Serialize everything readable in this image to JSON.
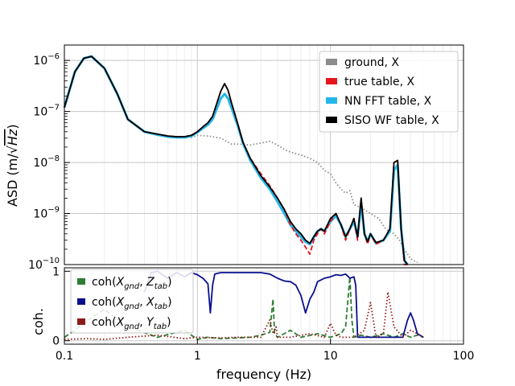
{
  "chart_data": [
    {
      "type": "line",
      "x_scale": "log",
      "y_scale": "log",
      "xlim": [
        0.1,
        100
      ],
      "ylim": [
        1e-10,
        2e-06
      ],
      "grid": true,
      "ylabel_text": "ASD (m/",
      "ylabel_sqrt": "Hz",
      "ylabel_close": ")",
      "yticks": [
        {
          "v": 1e-06,
          "mant": "10",
          "exp": "−6"
        },
        {
          "v": 1e-07,
          "mant": "10",
          "exp": "−7"
        },
        {
          "v": 1e-08,
          "mant": "10",
          "exp": "−8"
        },
        {
          "v": 1e-09,
          "mant": "10",
          "exp": "−9"
        },
        {
          "v": 1e-10,
          "mant": "10",
          "exp": "−10"
        }
      ],
      "legend_position": "top-right",
      "series": [
        {
          "name": "ground, X",
          "color": "#8c8c8c",
          "style": "dotted",
          "x": [
            0.1,
            0.12,
            0.14,
            0.16,
            0.2,
            0.25,
            0.3,
            0.4,
            0.5,
            0.6,
            0.7,
            0.8,
            0.9,
            1,
            1.2,
            1.5,
            1.8,
            2,
            2.5,
            3,
            3.5,
            4,
            4.5,
            5,
            6,
            7,
            8,
            9,
            10,
            11,
            12,
            13,
            14,
            15,
            17,
            20,
            23,
            26,
            30,
            33,
            36,
            40,
            45
          ],
          "y": [
            1.2e-07,
            6e-07,
            1.1e-06,
            1.2e-06,
            7e-07,
            2.2e-07,
            7e-08,
            4e-08,
            3.6e-08,
            3.3e-08,
            3.2e-08,
            3.2e-08,
            3.1e-08,
            3.4e-08,
            3.3e-08,
            3e-08,
            2.3e-08,
            2.3e-08,
            2.2e-08,
            2.4e-08,
            2.6e-08,
            2.2e-08,
            1.8e-08,
            1.6e-08,
            1.4e-08,
            1.2e-08,
            1e-08,
            7e-09,
            6e-09,
            4e-09,
            3e-09,
            2.5e-09,
            2.8e-09,
            1.5e-09,
            1.3e-09,
            1e-09,
            8e-10,
            5e-10,
            4e-10,
            3e-10,
            2e-10,
            1.3e-10,
            1.1e-10
          ]
        },
        {
          "name": "true table, X",
          "color": "#e8141c",
          "style": "dashed",
          "x": [
            0.1,
            0.12,
            0.14,
            0.16,
            0.2,
            0.25,
            0.3,
            0.4,
            0.5,
            0.6,
            0.7,
            0.8,
            0.9,
            1,
            1.1,
            1.2,
            1.3,
            1.5,
            1.6,
            1.7,
            1.8,
            2,
            2.2,
            2.5,
            3,
            3.5,
            4,
            4.5,
            5,
            5.5,
            6,
            6.5,
            7,
            7.5,
            8,
            8.5,
            9,
            10,
            11,
            12,
            13,
            14,
            15,
            16,
            17,
            18,
            19,
            20,
            22,
            25,
            28,
            30,
            32,
            34,
            36,
            38
          ],
          "y": [
            1.2e-07,
            6e-07,
            1.1e-06,
            1.2e-06,
            7e-07,
            2.2e-07,
            7e-08,
            4e-08,
            3.6e-08,
            3.3e-08,
            3.2e-08,
            3.2e-08,
            3.4e-08,
            4e-08,
            5e-08,
            6e-08,
            8e-08,
            2.5e-07,
            3.5e-07,
            2.6e-07,
            1.5e-07,
            6e-08,
            2.5e-08,
            1.2e-08,
            6e-09,
            3.5e-09,
            2e-09,
            1.2e-09,
            6e-10,
            4e-10,
            3e-10,
            2.2e-10,
            1.6e-10,
            3e-10,
            4e-10,
            5e-10,
            4e-10,
            7e-10,
            1e-09,
            6e-10,
            3e-10,
            5e-10,
            8e-10,
            3e-10,
            2e-09,
            4e-10,
            2.5e-10,
            4e-10,
            2.5e-10,
            3e-10,
            5e-10,
            1e-08,
            1.1e-08,
            5e-10,
            1e-10,
            1e-10
          ]
        },
        {
          "name": "NN FFT table, X",
          "color": "#23b7ea",
          "style": "solid",
          "x": [
            0.1,
            0.12,
            0.14,
            0.16,
            0.2,
            0.25,
            0.3,
            0.4,
            0.5,
            0.6,
            0.7,
            0.8,
            0.9,
            1,
            1.1,
            1.2,
            1.3,
            1.5,
            1.6,
            1.7,
            1.8,
            2,
            2.2,
            2.5,
            3,
            3.5,
            4,
            4.5,
            5,
            5.5,
            6,
            6.5,
            7,
            7.5,
            8,
            8.5,
            9,
            10,
            11,
            12,
            13,
            14,
            15,
            16,
            17,
            18,
            19,
            20,
            22,
            25,
            28,
            30,
            32,
            34,
            36,
            38
          ],
          "y": [
            1.2e-07,
            6e-07,
            1.1e-06,
            1.2e-06,
            7e-07,
            2.2e-07,
            7e-08,
            4e-08,
            3.5e-08,
            3.2e-08,
            3.1e-08,
            3.1e-08,
            3.3e-08,
            3.9e-08,
            4.7e-08,
            5.5e-08,
            7e-08,
            1.8e-07,
            2.2e-07,
            1.8e-07,
            1.2e-07,
            5.5e-08,
            2.4e-08,
            1.1e-08,
            5e-09,
            3e-09,
            1.7e-09,
            1e-09,
            6e-10,
            4.5e-10,
            3.5e-10,
            2.8e-10,
            2.5e-10,
            3.5e-10,
            4.5e-10,
            5e-10,
            4.5e-10,
            7e-10,
            9e-10,
            6e-10,
            3.5e-10,
            5e-10,
            7e-10,
            3.5e-10,
            1.6e-09,
            4e-10,
            2.8e-10,
            4e-10,
            2.6e-10,
            3e-10,
            4.5e-10,
            7e-09,
            9e-09,
            5e-10,
            1.2e-10,
            1e-10
          ]
        },
        {
          "name": "SISO WF table, X",
          "color": "#000000",
          "style": "solid",
          "x": [
            0.1,
            0.12,
            0.14,
            0.16,
            0.2,
            0.25,
            0.3,
            0.4,
            0.5,
            0.6,
            0.7,
            0.8,
            0.9,
            1,
            1.1,
            1.2,
            1.3,
            1.5,
            1.6,
            1.7,
            1.8,
            2,
            2.2,
            2.5,
            3,
            3.5,
            4,
            4.5,
            5,
            5.5,
            6,
            6.5,
            7,
            7.5,
            8,
            8.5,
            9,
            10,
            11,
            12,
            13,
            14,
            15,
            16,
            17,
            18,
            19,
            20,
            22,
            25,
            28,
            30,
            32,
            34,
            36,
            38
          ],
          "y": [
            1.2e-07,
            6e-07,
            1.1e-06,
            1.2e-06,
            7e-07,
            2.2e-07,
            7e-08,
            4e-08,
            3.6e-08,
            3.3e-08,
            3.2e-08,
            3.2e-08,
            3.4e-08,
            4e-08,
            5e-08,
            6e-08,
            8e-08,
            2.5e-07,
            3.5e-07,
            2.6e-07,
            1.5e-07,
            6e-08,
            2.5e-08,
            1.2e-08,
            5.5e-09,
            3.3e-09,
            2e-09,
            1.2e-09,
            7e-10,
            5e-10,
            4e-10,
            3e-10,
            2.6e-10,
            3.5e-10,
            4.5e-10,
            5e-10,
            4.5e-10,
            8e-10,
            1e-09,
            6e-10,
            3.5e-10,
            5e-10,
            8e-10,
            3.5e-10,
            2e-09,
            4e-10,
            2.8e-10,
            4e-10,
            2.7e-10,
            3e-10,
            5e-10,
            1e-08,
            1.1e-08,
            5e-10,
            1.2e-10,
            1e-10
          ]
        }
      ]
    },
    {
      "type": "line",
      "x_scale": "log",
      "xlim": [
        0.1,
        100
      ],
      "ylim": [
        -0.05,
        1.05
      ],
      "grid": true,
      "xlabel": "frequency (Hz)",
      "ylabel": "coh.",
      "xticks": [
        {
          "v": 0.1,
          "label": "0.1"
        },
        {
          "v": 1,
          "label": "1"
        },
        {
          "v": 10,
          "label": "10"
        },
        {
          "v": 100,
          "label": "100"
        }
      ],
      "yticks": [
        {
          "v": 0,
          "label": "0"
        },
        {
          "v": 1,
          "label": "1"
        }
      ],
      "legend_position": "top-left",
      "series": [
        {
          "name_base": "coh(",
          "name_a": "X",
          "name_a_sub": "gnd",
          "name_sep": ", ",
          "name_b": "Z",
          "name_b_sub": "tab",
          "name_end": ")",
          "color": "#2e7d32",
          "style": "dashed",
          "x": [
            0.1,
            0.12,
            0.15,
            0.2,
            0.3,
            0.5,
            0.8,
            1,
            1.2,
            1.5,
            2,
            2.5,
            3,
            3.5,
            3.7,
            3.8,
            4,
            5,
            6,
            8,
            10,
            12,
            13,
            14,
            14.5,
            15,
            17,
            20,
            25,
            30,
            35,
            40,
            45,
            50
          ],
          "y": [
            0.05,
            0.15,
            0.3,
            0.45,
            0.2,
            0.05,
            0.15,
            0.02,
            0.05,
            0.03,
            0.04,
            0.05,
            0.08,
            0.12,
            0.6,
            0.1,
            0.05,
            0.15,
            0.05,
            0.1,
            0.05,
            0.1,
            0.2,
            0.92,
            0.3,
            0.05,
            0.08,
            0.05,
            0.1,
            0.05,
            0.1,
            0.05,
            0.08,
            0.05
          ]
        },
        {
          "name_base": "coh(",
          "name_a": "X",
          "name_a_sub": "gnd",
          "name_sep": ", ",
          "name_b": "X",
          "name_b_sub": "tab",
          "name_end": ")",
          "color": "#0a0f8c",
          "style": "solid",
          "x": [
            0.4,
            0.45,
            0.5,
            0.6,
            0.7,
            0.8,
            0.9,
            1,
            1.1,
            1.2,
            1.25,
            1.3,
            1.35,
            1.5,
            2,
            2.5,
            3,
            3.5,
            4,
            4.5,
            5,
            5.5,
            6,
            6.5,
            7,
            7.5,
            8,
            9,
            10,
            11,
            12,
            13,
            14,
            15,
            15.5,
            16,
            20,
            25,
            30,
            35,
            38,
            40,
            42,
            45,
            50
          ],
          "y": [
            0.7,
            0.98,
            1.0,
            0.9,
            0.98,
            0.92,
            0.98,
            0.95,
            0.9,
            0.82,
            0.4,
            0.8,
            0.96,
            0.98,
            0.98,
            0.98,
            0.98,
            0.96,
            0.9,
            0.86,
            0.85,
            0.8,
            0.65,
            0.4,
            0.6,
            0.7,
            0.85,
            0.9,
            0.92,
            0.95,
            0.94,
            0.96,
            0.9,
            0.92,
            0.8,
            0.05,
            0.05,
            0.05,
            0.05,
            0.05,
            0.3,
            0.4,
            0.3,
            0.1,
            0.05
          ]
        },
        {
          "name_base": "coh(",
          "name_a": "X",
          "name_a_sub": "gnd",
          "name_sep": ", ",
          "name_b": "Y",
          "name_b_sub": "tab",
          "name_end": ")",
          "color": "#8b1a1a",
          "style": "dotted",
          "x": [
            0.1,
            0.15,
            0.2,
            0.3,
            0.5,
            0.8,
            1,
            1.5,
            2,
            3,
            3.5,
            3.7,
            3.9,
            4,
            5,
            7,
            9,
            10,
            11,
            12,
            15,
            18,
            20,
            22,
            25,
            27,
            30,
            35,
            40,
            45,
            50
          ],
          "y": [
            0.02,
            0.03,
            0.02,
            0.05,
            0.08,
            0.03,
            0.05,
            0.04,
            0.05,
            0.05,
            0.3,
            0.1,
            0.2,
            0.05,
            0.05,
            0.1,
            0.05,
            0.25,
            0.08,
            0.05,
            0.05,
            0.15,
            0.55,
            0.05,
            0.1,
            0.7,
            0.2,
            0.05,
            0.15,
            0.1,
            0.05
          ]
        }
      ]
    }
  ]
}
